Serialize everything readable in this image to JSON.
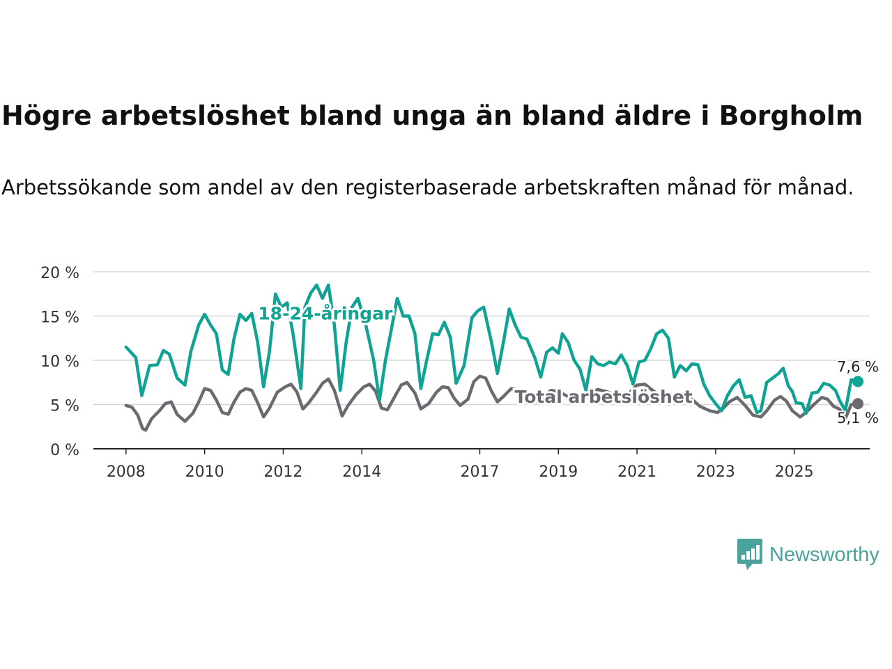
{
  "title": "Högre arbetslöshet bland unga än bland äldre i Borgholm",
  "subtitle": "Arbetssökande som andel av den registerbaserade arbetskraften månad för månad.",
  "brand": {
    "name": "Newsworthy",
    "icon": "newsworthy-logo-icon",
    "color": "#4aa39a"
  },
  "chart_data": {
    "type": "line",
    "y_tick_labels": [
      "0 %",
      "5 %",
      "10 %",
      "15 %",
      "20 %"
    ],
    "y_ticks": [
      0,
      5,
      10,
      15,
      20
    ],
    "ylim": [
      0,
      20
    ],
    "x_tick_labels": [
      "2008",
      "2010",
      "2012",
      "2014",
      "2017",
      "2019",
      "2021",
      "2023",
      "2025"
    ],
    "x_ticks": [
      2008,
      2010,
      2012,
      2014,
      2017,
      2019,
      2021,
      2023,
      2025
    ],
    "xlim": [
      2007.17,
      2026.92
    ],
    "grid": true,
    "series": [
      {
        "name": "18-24-åringar",
        "label": "18-24-åringar",
        "color": "#10a394",
        "end_label": "7,6 %",
        "points": [
          [
            2008.0,
            11.5
          ],
          [
            2008.25,
            10.3
          ],
          [
            2008.4,
            6.0
          ],
          [
            2008.6,
            9.4
          ],
          [
            2008.8,
            9.5
          ],
          [
            2008.95,
            11.1
          ],
          [
            2009.1,
            10.7
          ],
          [
            2009.3,
            8.0
          ],
          [
            2009.5,
            7.2
          ],
          [
            2009.65,
            11.0
          ],
          [
            2009.85,
            14.0
          ],
          [
            2010.0,
            15.2
          ],
          [
            2010.15,
            14.0
          ],
          [
            2010.3,
            13.0
          ],
          [
            2010.45,
            8.9
          ],
          [
            2010.6,
            8.4
          ],
          [
            2010.75,
            12.5
          ],
          [
            2010.9,
            15.2
          ],
          [
            2011.05,
            14.5
          ],
          [
            2011.2,
            15.3
          ],
          [
            2011.35,
            12.0
          ],
          [
            2011.5,
            7.0
          ],
          [
            2011.65,
            11.0
          ],
          [
            2011.8,
            17.5
          ],
          [
            2011.95,
            16.0
          ],
          [
            2012.1,
            16.5
          ],
          [
            2012.25,
            13.0
          ],
          [
            2012.45,
            6.8
          ],
          [
            2012.55,
            16.0
          ],
          [
            2012.7,
            17.6
          ],
          [
            2012.85,
            18.5
          ],
          [
            2013.0,
            17.0
          ],
          [
            2013.15,
            18.5
          ],
          [
            2013.3,
            14.0
          ],
          [
            2013.45,
            6.6
          ],
          [
            2013.6,
            12.0
          ],
          [
            2013.75,
            16.0
          ],
          [
            2013.9,
            17.0
          ],
          [
            2014.1,
            14.0
          ],
          [
            2014.3,
            10.0
          ],
          [
            2014.45,
            5.5
          ],
          [
            2014.6,
            10.0
          ],
          [
            2014.75,
            13.5
          ],
          [
            2014.9,
            17.0
          ],
          [
            2015.05,
            15.0
          ],
          [
            2015.2,
            15.0
          ],
          [
            2015.35,
            13.0
          ],
          [
            2015.5,
            6.8
          ],
          [
            2015.65,
            10.0
          ],
          [
            2015.8,
            13.0
          ],
          [
            2015.95,
            12.9
          ],
          [
            2016.1,
            14.3
          ],
          [
            2016.25,
            12.6
          ],
          [
            2016.4,
            7.4
          ],
          [
            2016.6,
            9.4
          ],
          [
            2016.8,
            14.8
          ],
          [
            2016.95,
            15.6
          ],
          [
            2017.1,
            16.0
          ],
          [
            2017.3,
            12.0
          ],
          [
            2017.45,
            8.5
          ],
          [
            2017.6,
            12.0
          ],
          [
            2017.75,
            15.8
          ],
          [
            2017.9,
            14.0
          ],
          [
            2018.05,
            12.6
          ],
          [
            2018.2,
            12.4
          ],
          [
            2018.4,
            10.3
          ],
          [
            2018.55,
            8.1
          ],
          [
            2018.7,
            10.9
          ],
          [
            2018.85,
            11.4
          ],
          [
            2019.0,
            10.8
          ],
          [
            2019.1,
            13.0
          ],
          [
            2019.25,
            12.0
          ],
          [
            2019.4,
            10.0
          ],
          [
            2019.55,
            9.0
          ],
          [
            2019.7,
            6.6
          ],
          [
            2019.85,
            10.4
          ],
          [
            2020.0,
            9.6
          ],
          [
            2020.15,
            9.4
          ],
          [
            2020.3,
            9.8
          ],
          [
            2020.45,
            9.6
          ],
          [
            2020.6,
            10.6
          ],
          [
            2020.75,
            9.4
          ],
          [
            2020.9,
            7.3
          ],
          [
            2021.05,
            9.8
          ],
          [
            2021.2,
            10.0
          ],
          [
            2021.35,
            11.3
          ],
          [
            2021.5,
            13.0
          ],
          [
            2021.65,
            13.4
          ],
          [
            2021.8,
            12.5
          ],
          [
            2021.95,
            8.1
          ],
          [
            2022.1,
            9.4
          ],
          [
            2022.25,
            8.8
          ],
          [
            2022.4,
            9.6
          ],
          [
            2022.55,
            9.5
          ],
          [
            2022.7,
            7.3
          ],
          [
            2022.85,
            6.0
          ],
          [
            2023.0,
            5.1
          ],
          [
            2023.15,
            4.3
          ],
          [
            2023.3,
            6.0
          ],
          [
            2023.45,
            7.1
          ],
          [
            2023.6,
            7.8
          ],
          [
            2023.75,
            5.8
          ],
          [
            2023.9,
            6.0
          ],
          [
            2024.05,
            4.1
          ],
          [
            2024.15,
            4.3
          ],
          [
            2024.3,
            7.5
          ],
          [
            2024.45,
            8.0
          ],
          [
            2024.6,
            8.5
          ],
          [
            2024.72,
            9.1
          ],
          [
            2024.85,
            7.1
          ],
          [
            2024.95,
            6.5
          ],
          [
            2025.05,
            5.2
          ],
          [
            2025.2,
            5.1
          ],
          [
            2025.3,
            4.0
          ],
          [
            2025.45,
            6.3
          ],
          [
            2025.6,
            6.4
          ],
          [
            2025.75,
            7.4
          ],
          [
            2025.9,
            7.2
          ],
          [
            2026.05,
            6.6
          ],
          [
            2026.15,
            5.5
          ],
          [
            2026.3,
            4.3
          ],
          [
            2026.45,
            7.8
          ],
          [
            2026.62,
            7.6
          ]
        ]
      },
      {
        "name": "Total arbetslöshet",
        "label": "Total arbetslöshet",
        "color": "#6b6a70",
        "end_label": "5,1 %",
        "points": [
          [
            2008.0,
            4.9
          ],
          [
            2008.15,
            4.7
          ],
          [
            2008.3,
            3.8
          ],
          [
            2008.42,
            2.3
          ],
          [
            2008.5,
            2.1
          ],
          [
            2008.65,
            3.4
          ],
          [
            2008.85,
            4.3
          ],
          [
            2009.0,
            5.1
          ],
          [
            2009.15,
            5.3
          ],
          [
            2009.3,
            3.9
          ],
          [
            2009.5,
            3.1
          ],
          [
            2009.7,
            4.0
          ],
          [
            2009.85,
            5.3
          ],
          [
            2010.0,
            6.8
          ],
          [
            2010.15,
            6.6
          ],
          [
            2010.3,
            5.5
          ],
          [
            2010.45,
            4.1
          ],
          [
            2010.6,
            3.9
          ],
          [
            2010.75,
            5.3
          ],
          [
            2010.9,
            6.4
          ],
          [
            2011.05,
            6.8
          ],
          [
            2011.2,
            6.6
          ],
          [
            2011.35,
            5.2
          ],
          [
            2011.5,
            3.6
          ],
          [
            2011.65,
            4.6
          ],
          [
            2011.85,
            6.4
          ],
          [
            2012.05,
            7.0
          ],
          [
            2012.2,
            7.3
          ],
          [
            2012.35,
            6.4
          ],
          [
            2012.5,
            4.5
          ],
          [
            2012.65,
            5.2
          ],
          [
            2012.85,
            6.4
          ],
          [
            2013.0,
            7.4
          ],
          [
            2013.15,
            7.9
          ],
          [
            2013.3,
            6.6
          ],
          [
            2013.5,
            3.7
          ],
          [
            2013.65,
            4.9
          ],
          [
            2013.85,
            6.1
          ],
          [
            2014.05,
            7.0
          ],
          [
            2014.2,
            7.3
          ],
          [
            2014.35,
            6.5
          ],
          [
            2014.5,
            4.6
          ],
          [
            2014.65,
            4.4
          ],
          [
            2014.85,
            6.0
          ],
          [
            2015.0,
            7.2
          ],
          [
            2015.15,
            7.5
          ],
          [
            2015.35,
            6.3
          ],
          [
            2015.5,
            4.5
          ],
          [
            2015.7,
            5.1
          ],
          [
            2015.9,
            6.4
          ],
          [
            2016.05,
            7.0
          ],
          [
            2016.2,
            6.9
          ],
          [
            2016.35,
            5.7
          ],
          [
            2016.5,
            4.9
          ],
          [
            2016.7,
            5.6
          ],
          [
            2016.85,
            7.6
          ],
          [
            2017.0,
            8.2
          ],
          [
            2017.15,
            8.0
          ],
          [
            2017.3,
            6.5
          ],
          [
            2017.45,
            5.3
          ],
          [
            2017.6,
            5.9
          ],
          [
            2017.8,
            6.8
          ],
          [
            2018.0,
            6.6
          ],
          [
            2018.2,
            6.0
          ],
          [
            2018.4,
            5.3
          ],
          [
            2018.6,
            5.6
          ],
          [
            2018.8,
            6.6
          ],
          [
            2019.0,
            6.5
          ],
          [
            2019.2,
            6.0
          ],
          [
            2019.4,
            5.6
          ],
          [
            2019.6,
            5.3
          ],
          [
            2019.8,
            6.3
          ],
          [
            2020.0,
            6.7
          ],
          [
            2020.2,
            6.5
          ],
          [
            2020.4,
            6.2
          ],
          [
            2020.6,
            6.0
          ],
          [
            2020.8,
            6.3
          ],
          [
            2021.0,
            7.2
          ],
          [
            2021.2,
            7.3
          ],
          [
            2021.4,
            6.6
          ],
          [
            2021.6,
            6.0
          ],
          [
            2021.8,
            5.1
          ],
          [
            2022.0,
            5.4
          ],
          [
            2022.2,
            6.3
          ],
          [
            2022.4,
            5.6
          ],
          [
            2022.6,
            4.8
          ],
          [
            2022.85,
            4.3
          ],
          [
            2023.05,
            4.1
          ],
          [
            2023.2,
            4.6
          ],
          [
            2023.35,
            5.3
          ],
          [
            2023.55,
            5.8
          ],
          [
            2023.75,
            4.9
          ],
          [
            2023.95,
            3.8
          ],
          [
            2024.15,
            3.6
          ],
          [
            2024.3,
            4.3
          ],
          [
            2024.5,
            5.5
          ],
          [
            2024.65,
            5.9
          ],
          [
            2024.8,
            5.4
          ],
          [
            2024.95,
            4.3
          ],
          [
            2025.15,
            3.6
          ],
          [
            2025.3,
            4.1
          ],
          [
            2025.5,
            5.0
          ],
          [
            2025.7,
            5.8
          ],
          [
            2025.85,
            5.6
          ],
          [
            2026.0,
            4.8
          ],
          [
            2026.15,
            4.5
          ],
          [
            2026.3,
            3.4
          ],
          [
            2026.45,
            5.0
          ],
          [
            2026.62,
            5.1
          ]
        ]
      }
    ]
  }
}
